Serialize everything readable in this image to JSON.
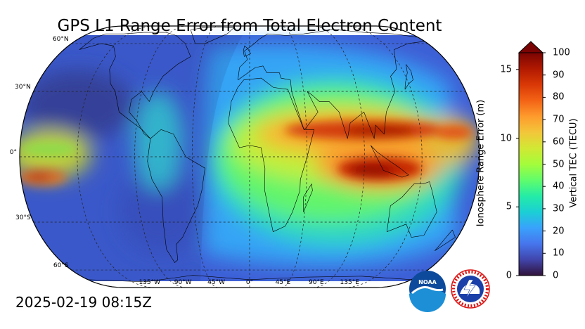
{
  "title": "GPS L1 Range Error from Total Electron Content",
  "timestamp": "2025-02-19 08:15Z",
  "map": {
    "projection": "robinson",
    "lat_labels": [
      "60°N",
      "30°N",
      "0°",
      "30°S",
      "60°S"
    ],
    "lon_labels": [
      "135°W",
      "90°W",
      "45°W",
      "0°",
      "45°E",
      "90°E",
      "135°E"
    ],
    "gridlines": true,
    "gridline_style": "dashed"
  },
  "colorbar": {
    "left_label": "Ionosphere Range Error (m)",
    "right_label": "Vertical TEC (TECU)",
    "left_ticks": [
      "0",
      "5",
      "10",
      "15"
    ],
    "left_values": [
      0,
      5,
      10,
      15
    ],
    "right_ticks": [
      "0",
      "10",
      "20",
      "30",
      "40",
      "50",
      "60",
      "70",
      "80",
      "90",
      "100"
    ],
    "right_values": [
      0,
      10,
      20,
      30,
      40,
      50,
      60,
      70,
      80,
      90,
      100
    ],
    "range": [
      0,
      100
    ],
    "extend": "max",
    "colormap": "turbo",
    "colors": [
      "#30123b",
      "#4145ab",
      "#4675ed",
      "#39a2fc",
      "#1bcfd4",
      "#24eca6",
      "#61fc6c",
      "#a4fc3b",
      "#d1e834",
      "#f3c63a",
      "#fe9b2d",
      "#f36315",
      "#d93806",
      "#b11901",
      "#7a0403"
    ]
  },
  "logos": {
    "noaa": {
      "name": "noaa-logo",
      "text": "NOAA"
    },
    "nws": {
      "name": "nws-logo",
      "text": "NATIONAL WEATHER SERVICE"
    }
  }
}
